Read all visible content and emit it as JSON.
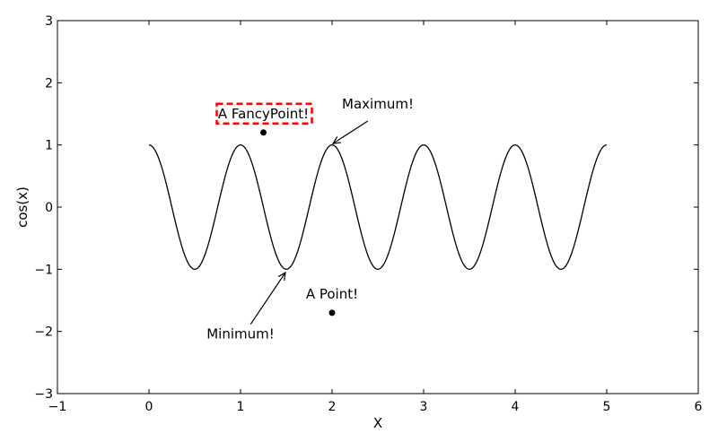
{
  "chart_data": {
    "type": "line",
    "title": "",
    "xlabel": "X",
    "ylabel": "cos(x)",
    "xlim": [
      -1,
      6
    ],
    "ylim": [
      -3,
      3
    ],
    "xticks": [
      "−1",
      "0",
      "1",
      "2",
      "3",
      "4",
      "5",
      "6"
    ],
    "yticks": [
      "−3",
      "−2",
      "−1",
      "0",
      "1",
      "2",
      "3"
    ],
    "grid": false,
    "series": [
      {
        "function": "cos(2*pi*x)",
        "x_range": [
          0,
          5
        ],
        "color": "#000000"
      }
    ],
    "points": [
      {
        "x": 1.25,
        "y": 1.2,
        "label": "A FancyPoint!",
        "boxed": true
      },
      {
        "x": 2.0,
        "y": -1.7,
        "label": "A Point!",
        "boxed": false
      }
    ],
    "annotations": [
      {
        "text": "Maximum!",
        "xy": [
          2.0,
          1.0
        ],
        "text_xy": [
          2.5,
          1.5
        ]
      },
      {
        "text": "Minimum!",
        "xy": [
          1.5,
          -1.0
        ],
        "text_xy": [
          1.0,
          -2.0
        ]
      }
    ],
    "accent_color": "#ff0000"
  }
}
